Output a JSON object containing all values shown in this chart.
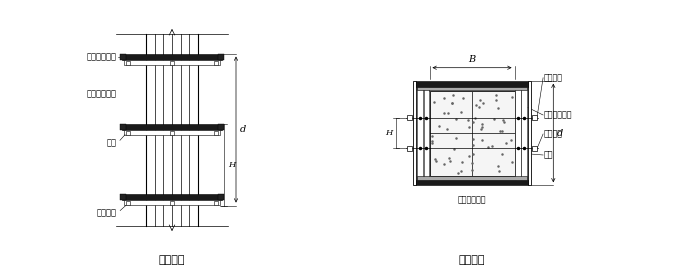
{
  "bg_color": "#ffffff",
  "line_color": "#000000",
  "title_left": "柱立面图",
  "title_right": "柱剖面图",
  "label_zhusuo": "柱箍（方木）",
  "label_zhulong": "竖楞（方木）",
  "label_mianban": "面板",
  "label_duola": "对拉螺栓",
  "dim_B": "B",
  "dim_d": "d",
  "dim_H": "H"
}
